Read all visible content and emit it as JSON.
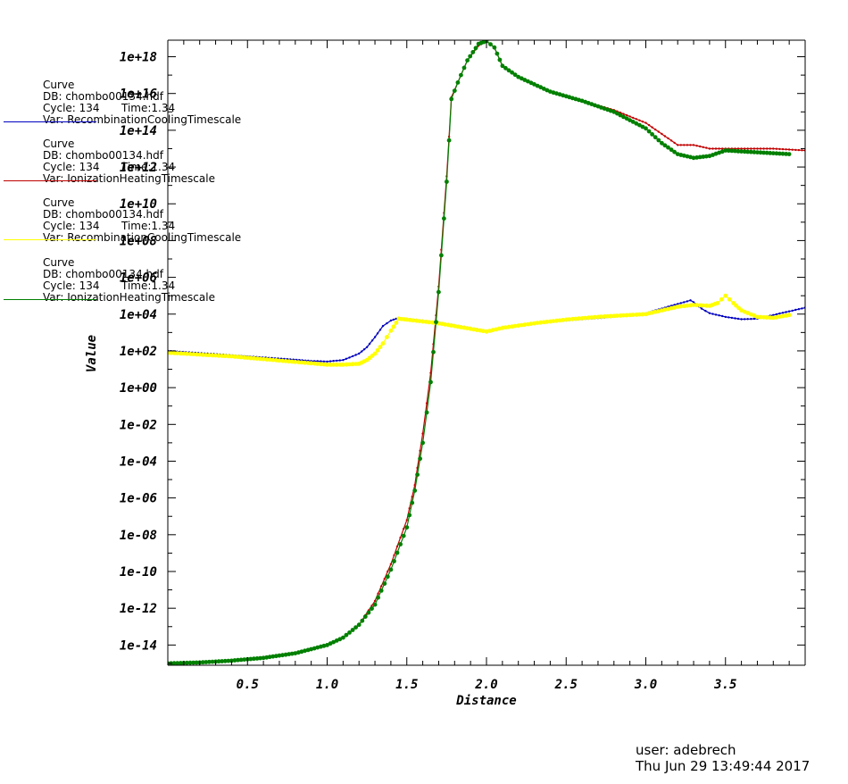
{
  "legend": [
    {
      "label": "Curve",
      "db": "DB: chombo00134.hdf",
      "cycle": "Cycle: 134",
      "time": "Time:1.34",
      "var": "Var: RecombinationCoolingTimescale",
      "color": "#0000c0"
    },
    {
      "label": "Curve",
      "db": "DB: chombo00134.hdf",
      "cycle": "Cycle: 134",
      "time": "Time:1.34",
      "var": "Var: IonizationHeatingTimescale",
      "color": "#c00000"
    },
    {
      "label": "Curve",
      "db": "DB: chombo00134.hdf",
      "cycle": "Cycle: 134",
      "time": "Time:1.34",
      "var": "Var: RecombinationCoolingTimescale",
      "color": "#ffff00"
    },
    {
      "label": "Curve",
      "db": "DB: chombo00134.hdf",
      "cycle": "Cycle: 134",
      "time": "Time:1.34",
      "var": "Var: IonizationHeatingTimescale",
      "color": "#008000"
    }
  ],
  "footer": {
    "user": "user: adebrech",
    "date": "Thu Jun 29 13:49:44 2017"
  },
  "chart_data": {
    "type": "line",
    "xlabel": "Distance",
    "ylabel": "Value",
    "yscale": "log",
    "xlim": [
      0,
      4.0
    ],
    "ylim_log10": [
      -15.1,
      18.9
    ],
    "x_ticks": [
      0.5,
      1.0,
      1.5,
      2.0,
      2.5,
      3.0,
      3.5
    ],
    "x_tick_labels": [
      "0.5",
      "1.0",
      "1.5",
      "2.0",
      "2.5",
      "3.0",
      "3.5"
    ],
    "y_ticks_log10": [
      18,
      16,
      14,
      12,
      10,
      8,
      6,
      4,
      2,
      0,
      -2,
      -4,
      -6,
      -8,
      -10,
      -12,
      -14
    ],
    "y_tick_labels": [
      "1e+18",
      "1e+16",
      "1e+14",
      "1e+12",
      "1e+10",
      "1e+08",
      "1e+06",
      "1e+04",
      "1e+02",
      "1e+00",
      "1e-02",
      "1e-04",
      "1e-06",
      "1e-08",
      "1e-10",
      "1e-12",
      "1e-14"
    ],
    "series": [
      {
        "color": "#0000c0",
        "marker": "small",
        "x": [
          0.0,
          0.25,
          0.5,
          0.75,
          0.9,
          1.0,
          1.1,
          1.2,
          1.25,
          1.3,
          1.35,
          1.4,
          1.45,
          1.5,
          1.6,
          1.7,
          1.8,
          1.9,
          2.0,
          2.1,
          2.3,
          2.5,
          2.8,
          3.0,
          3.1,
          3.2,
          3.28,
          3.3,
          3.35,
          3.4,
          3.5,
          3.6,
          3.7,
          3.8,
          3.9,
          4.0
        ],
        "log10y": [
          2.0,
          1.85,
          1.7,
          1.55,
          1.45,
          1.42,
          1.5,
          1.85,
          2.2,
          2.75,
          3.35,
          3.65,
          3.8,
          3.75,
          3.65,
          3.55,
          3.4,
          3.25,
          3.1,
          3.25,
          3.5,
          3.65,
          3.85,
          4.05,
          4.3,
          4.55,
          4.75,
          4.65,
          4.3,
          4.05,
          3.85,
          3.72,
          3.75,
          3.95,
          4.15,
          4.35
        ]
      },
      {
        "color": "#c00000",
        "marker": "small",
        "x": [
          0.0,
          0.2,
          0.4,
          0.6,
          0.8,
          1.0,
          1.1,
          1.2,
          1.3,
          1.4,
          1.5,
          1.55,
          1.6,
          1.65,
          1.7,
          1.75,
          1.78,
          1.82,
          1.88,
          1.95,
          2.0,
          2.05,
          2.1,
          2.2,
          2.4,
          2.6,
          2.8,
          3.0,
          3.1,
          3.2,
          3.3,
          3.4,
          3.6,
          3.8,
          4.0
        ],
        "log10y": [
          -15.0,
          -14.95,
          -14.85,
          -14.65,
          -14.4,
          -14.0,
          -13.6,
          -12.9,
          -11.6,
          -9.6,
          -7.2,
          -5.3,
          -2.5,
          0.8,
          5.5,
          11.5,
          15.8,
          16.6,
          17.8,
          18.6,
          18.85,
          18.5,
          17.5,
          16.9,
          16.1,
          15.6,
          15.1,
          14.4,
          13.8,
          13.2,
          13.2,
          13.0,
          13.0,
          13.0,
          12.9
        ]
      },
      {
        "color": "#ffff00",
        "marker": "dot",
        "x": [
          0.0,
          0.2,
          0.4,
          0.6,
          0.8,
          1.0,
          1.1,
          1.2,
          1.25,
          1.3,
          1.35,
          1.4,
          1.45,
          1.5,
          1.6,
          1.7,
          1.8,
          1.9,
          2.0,
          2.1,
          2.3,
          2.5,
          2.7,
          3.0,
          3.1,
          3.2,
          3.3,
          3.4,
          3.45,
          3.5,
          3.55,
          3.6,
          3.7,
          3.8,
          3.9
        ],
        "log10y": [
          1.9,
          1.8,
          1.7,
          1.55,
          1.4,
          1.25,
          1.25,
          1.3,
          1.5,
          1.85,
          2.4,
          3.1,
          3.75,
          3.7,
          3.6,
          3.5,
          3.35,
          3.2,
          3.05,
          3.25,
          3.5,
          3.7,
          3.85,
          4.0,
          4.2,
          4.4,
          4.5,
          4.45,
          4.6,
          5.0,
          4.6,
          4.2,
          3.85,
          3.8,
          3.95
        ]
      },
      {
        "color": "#008000",
        "marker": "dot",
        "x": [
          0.0,
          0.2,
          0.4,
          0.6,
          0.8,
          1.0,
          1.1,
          1.2,
          1.3,
          1.4,
          1.5,
          1.55,
          1.6,
          1.65,
          1.7,
          1.75,
          1.78,
          1.82,
          1.88,
          1.95,
          2.0,
          2.05,
          2.1,
          2.2,
          2.4,
          2.6,
          2.8,
          3.0,
          3.1,
          3.2,
          3.3,
          3.4,
          3.5,
          3.7,
          3.9
        ],
        "log10y": [
          -15.0,
          -14.95,
          -14.85,
          -14.7,
          -14.45,
          -14.0,
          -13.6,
          -12.9,
          -11.8,
          -9.9,
          -7.6,
          -5.6,
          -3.0,
          0.3,
          5.2,
          11.2,
          15.7,
          16.6,
          17.8,
          18.7,
          18.85,
          18.5,
          17.5,
          16.9,
          16.1,
          15.6,
          15.0,
          14.1,
          13.3,
          12.7,
          12.5,
          12.6,
          12.9,
          12.8,
          12.7
        ]
      }
    ]
  }
}
